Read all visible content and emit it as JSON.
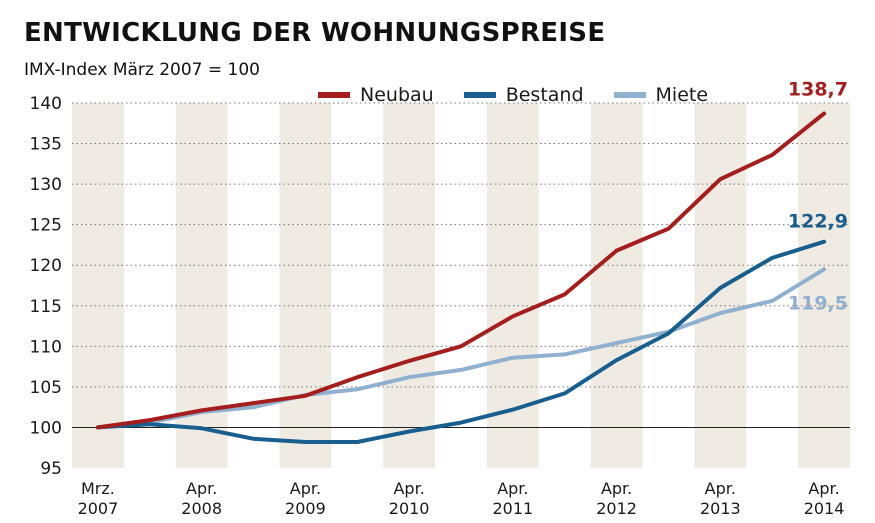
{
  "header": {
    "title": "ENTWICKLUNG DER WOHNUNGSPREISE",
    "subtitle": "IMX-Index März 2007 = 100"
  },
  "legend": [
    {
      "label": "Neubau",
      "color": "#a51d1d"
    },
    {
      "label": "Bestand",
      "color": "#185f8f"
    },
    {
      "label": "Miete",
      "color": "#8fb0cf"
    }
  ],
  "chart_data": {
    "type": "line",
    "title": "ENTWICKLUNG DER WOHNUNGSPREISE",
    "subtitle": "IMX-Index März 2007 = 100",
    "xlabel": "",
    "ylabel": "",
    "ylim": [
      95,
      140
    ],
    "yticks": [
      "95",
      "100",
      "105",
      "110",
      "115",
      "120",
      "125",
      "130",
      "135",
      "140"
    ],
    "xtick_labels": [
      [
        "Mrz.",
        "2007"
      ],
      [
        "Apr.",
        "2008"
      ],
      [
        "Apr.",
        "2009"
      ],
      [
        "Apr.",
        "2010"
      ],
      [
        "Apr.",
        "2011"
      ],
      [
        "Apr.",
        "2012"
      ],
      [
        "Apr.",
        "2013"
      ],
      [
        "Apr.",
        "2014"
      ]
    ],
    "x": [
      "2007-03",
      "2007-10",
      "2008-04",
      "2008-10",
      "2009-04",
      "2009-10",
      "2010-04",
      "2010-10",
      "2011-04",
      "2011-10",
      "2012-04",
      "2012-10",
      "2013-04",
      "2013-10",
      "2014-04"
    ],
    "grid": true,
    "legend_position": "top",
    "series": [
      {
        "name": "Neubau",
        "color": "#a51d1d",
        "values": [
          100,
          100.9,
          102.1,
          103.0,
          103.9,
          106.2,
          108.2,
          110.0,
          113.7,
          116.4,
          121.8,
          124.5,
          130.6,
          133.6,
          138.7
        ],
        "end_label": "138,7"
      },
      {
        "name": "Bestand",
        "color": "#185f8f",
        "values": [
          100,
          100.4,
          99.9,
          98.6,
          98.2,
          98.2,
          99.5,
          100.6,
          102.2,
          104.2,
          108.3,
          111.6,
          117.2,
          120.9,
          122.9
        ],
        "end_label": "122,9"
      },
      {
        "name": "Miete",
        "color": "#8fb0cf",
        "values": [
          100,
          100.6,
          101.9,
          102.5,
          104.0,
          104.7,
          106.2,
          107.1,
          108.6,
          109.0,
          110.4,
          111.8,
          114.1,
          115.6,
          119.5
        ],
        "end_label": "119,5"
      }
    ]
  }
}
